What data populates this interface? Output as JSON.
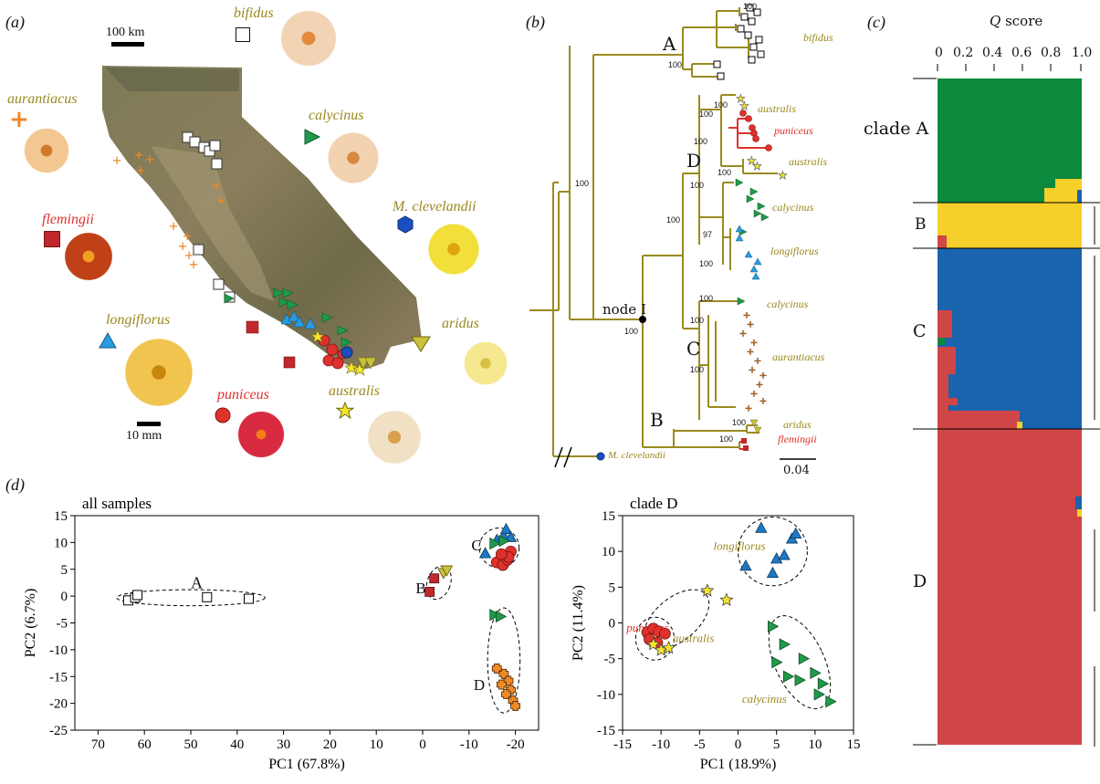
{
  "panels": {
    "a": "(a)",
    "b": "(b)",
    "c": "(c)",
    "d": "(d)"
  },
  "map": {
    "scale_km": "100 km",
    "scale_mm": "10 mm",
    "taxa": [
      {
        "name": "bifidus",
        "color": "#9a8a1e",
        "symbol": "open-square"
      },
      {
        "name": "aurantiacus",
        "color": "#9a8a1e",
        "symbol": "orange-cross"
      },
      {
        "name": "calycinus",
        "color": "#9a8a1e",
        "symbol": "green-triangle"
      },
      {
        "name": "M. clevelandii",
        "color": "#9a8a1e",
        "symbol": "blue-hexagon"
      },
      {
        "name": "flemingii",
        "color": "#e0322c",
        "symbol": "red-square"
      },
      {
        "name": "longiflorus",
        "color": "#9a8a1e",
        "symbol": "blue-triangle"
      },
      {
        "name": "aridus",
        "color": "#9a8a1e",
        "symbol": "yellow-down-triangle"
      },
      {
        "name": "puniceus",
        "color": "#e0322c",
        "symbol": "red-circle"
      },
      {
        "name": "australis",
        "color": "#9a8a1e",
        "symbol": "yellow-star"
      }
    ]
  },
  "tree": {
    "clades": {
      "A": "A",
      "B": "B",
      "C": "C",
      "D": "D"
    },
    "node_label": "node I",
    "bootstrap": [
      "100",
      "100",
      "100",
      "100",
      "100",
      "100",
      "100",
      "97",
      "100",
      "100",
      "100",
      "100",
      "100",
      "100",
      "100",
      "100",
      "100"
    ],
    "tips": {
      "bifidus": "bifidus",
      "australis1": "australis",
      "puniceus": "puniceus",
      "australis2": "australis",
      "calycinus1": "calycinus",
      "longiflorus": "longiflorus",
      "calycinus2": "calycinus",
      "aurantiacus": "aurantiacus",
      "aridus": "aridus",
      "flemingii": "flemingii",
      "outgroup": "M. clevelandii"
    },
    "scale": "0.04"
  },
  "structure": {
    "axis_title_italic": "Q",
    "axis_title": " score",
    "ticks": [
      "0",
      "0.2",
      "0.4",
      "0.6",
      "0.8",
      "1.0"
    ],
    "clade_labels": [
      "clade A",
      "B",
      "C",
      "D"
    ],
    "colors": {
      "A": "#0b8a3e",
      "B": "#f5cf2a",
      "C": "#1a63ad",
      "D": "#d04545"
    }
  },
  "chart_data": [
    {
      "type": "scatter",
      "title": "all samples",
      "xlabel": "PC1 (67.8%)",
      "ylabel": "PC2 (6.7%)",
      "xlim": [
        75,
        -25
      ],
      "ylim": [
        -25,
        15
      ],
      "x_ticks": [
        70,
        60,
        50,
        40,
        30,
        20,
        10,
        0,
        -10,
        -20
      ],
      "y_ticks": [
        15,
        10,
        5,
        0,
        -5,
        -10,
        -15,
        -20,
        -25
      ],
      "group_labels": [
        "A",
        "B",
        "C",
        "D"
      ],
      "series": [
        {
          "symbol": "open-square",
          "color": "#ffffff",
          "points": [
            [
              63.5,
              -0.8
            ],
            [
              62,
              -0.3
            ],
            [
              61.5,
              0.2
            ],
            [
              46.5,
              -0.2
            ],
            [
              37.5,
              -0.5
            ]
          ]
        },
        {
          "symbol": "red-square",
          "color": "#c0282c",
          "points": [
            [
              -2.5,
              3.3
            ],
            [
              -1.5,
              0.8
            ]
          ]
        },
        {
          "symbol": "yellow-down-triangle",
          "color": "#c9c23a",
          "points": [
            [
              -4.5,
              4.3
            ],
            [
              -5.2,
              4.8
            ]
          ]
        },
        {
          "symbol": "blue-triangle",
          "color": "#1e78c2",
          "points": [
            [
              -13.5,
              8
            ],
            [
              -16,
              10.5
            ],
            [
              -17.5,
              11.3
            ],
            [
              -18,
              12.5
            ],
            [
              -19,
              11
            ]
          ]
        },
        {
          "symbol": "green-triangle",
          "color": "#1f9a4a",
          "points": [
            [
              -15.5,
              9.8
            ],
            [
              -17.5,
              10.3
            ],
            [
              -15.5,
              -3.5
            ],
            [
              -16.8,
              -3.8
            ]
          ]
        },
        {
          "symbol": "red-circle",
          "color": "#e0322c",
          "points": [
            [
              -16,
              6.3
            ],
            [
              -17.3,
              5.8
            ],
            [
              -18.3,
              6.8
            ],
            [
              -19,
              8.3
            ],
            [
              -18.5,
              7.3
            ],
            [
              -17,
              7.8
            ]
          ]
        },
        {
          "symbol": "orange-cross",
          "color": "#f08a24",
          "points": [
            [
              -16,
              -13.5
            ],
            [
              -17.5,
              -14.5
            ],
            [
              -18.5,
              -15.8
            ],
            [
              -17,
              -16.5
            ],
            [
              -19,
              -17.5
            ],
            [
              -18,
              -18.3
            ],
            [
              -19.5,
              -19.5
            ],
            [
              -20,
              -20.5
            ]
          ]
        }
      ]
    },
    {
      "type": "scatter",
      "title": "clade D",
      "xlabel": "PC1 (18.9%)",
      "ylabel": "PC2 (11.4%)",
      "xlim": [
        -15,
        15
      ],
      "ylim": [
        -15,
        15
      ],
      "x_ticks": [
        -15,
        -10,
        -5,
        0,
        5,
        10,
        15
      ],
      "y_ticks": [
        15,
        10,
        5,
        0,
        -5,
        -10,
        -15
      ],
      "group_labels": [
        "longiflorus",
        "puniceus",
        "australis",
        "calycinus"
      ],
      "series": [
        {
          "symbol": "blue-triangle",
          "color": "#1e78c2",
          "points": [
            [
              1,
              8
            ],
            [
              3,
              13.3
            ],
            [
              4.5,
              7
            ],
            [
              5,
              9
            ],
            [
              6,
              9.5
            ],
            [
              7,
              11.8
            ],
            [
              7.5,
              12.5
            ]
          ]
        },
        {
          "symbol": "red-circle",
          "color": "#e0322c",
          "points": [
            [
              -11.8,
              -1.3
            ],
            [
              -11,
              -0.8
            ],
            [
              -10.3,
              -1.2
            ],
            [
              -9.5,
              -1.5
            ],
            [
              -11.5,
              -2.3
            ],
            [
              -10.5,
              -2.8
            ]
          ]
        },
        {
          "symbol": "yellow-star",
          "color": "#f5e52a",
          "points": [
            [
              -4,
              4.5
            ],
            [
              -1.5,
              3.2
            ],
            [
              -11,
              -3
            ],
            [
              -10,
              -3.8
            ],
            [
              -9,
              -3.5
            ]
          ]
        },
        {
          "symbol": "green-triangle",
          "color": "#1f9a4a",
          "points": [
            [
              4.5,
              -0.5
            ],
            [
              6,
              -3
            ],
            [
              5,
              -5.5
            ],
            [
              8.5,
              -5
            ],
            [
              10,
              -7
            ],
            [
              6.5,
              -7.5
            ],
            [
              11,
              -8.5
            ],
            [
              8,
              -8
            ],
            [
              10.5,
              -10
            ],
            [
              12,
              -11
            ]
          ]
        }
      ]
    }
  ]
}
